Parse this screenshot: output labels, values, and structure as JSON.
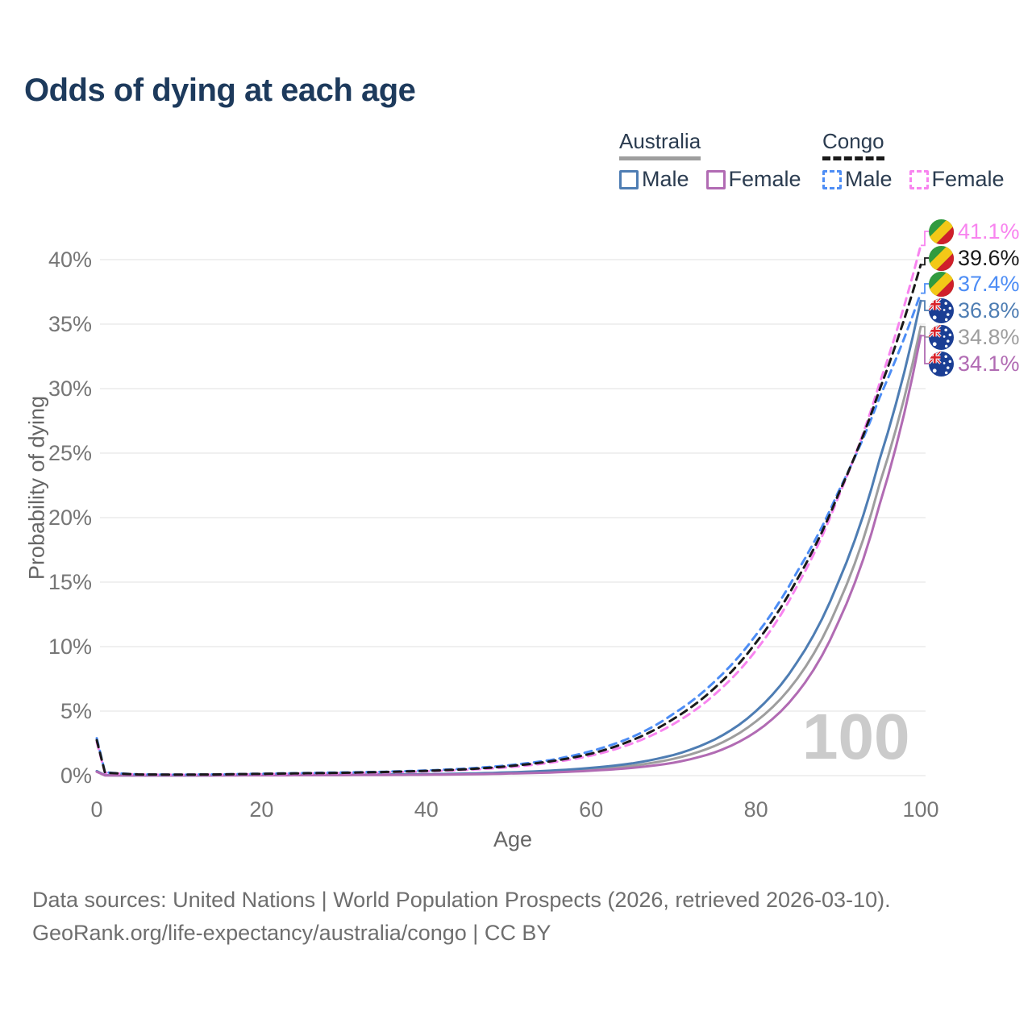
{
  "title": "Odds of dying at each age",
  "legend": {
    "groups": [
      {
        "label": "Australia",
        "underline_style": "solid",
        "underline_color": "#9e9e9e",
        "items": [
          {
            "label": "Male",
            "swatch_style": "solid",
            "color": "#4e7db3"
          },
          {
            "label": "Female",
            "swatch_style": "solid",
            "color": "#b16bb3"
          }
        ]
      },
      {
        "label": "Congo",
        "underline_style": "dashed",
        "underline_color": "#1a1a1a",
        "items": [
          {
            "label": "Male",
            "swatch_style": "dashed",
            "color": "#4d8df5"
          },
          {
            "label": "Female",
            "swatch_style": "dashed",
            "color": "#f884ef"
          }
        ]
      }
    ]
  },
  "chart_data": {
    "type": "line",
    "title": "Odds of dying at each age",
    "xlabel": "Age",
    "ylabel": "Probability of dying",
    "xlim": [
      0,
      100
    ],
    "ylim_percent": [
      0,
      43
    ],
    "x_ticks": [
      0,
      20,
      40,
      60,
      80,
      100
    ],
    "y_ticks_percent": [
      0,
      5,
      10,
      15,
      20,
      25,
      30,
      35,
      40
    ],
    "grid": "horizontal",
    "age_watermark": "100",
    "x": [
      0,
      1,
      5,
      10,
      15,
      20,
      25,
      30,
      35,
      40,
      45,
      50,
      55,
      60,
      65,
      70,
      75,
      80,
      85,
      90,
      95,
      100
    ],
    "series": [
      {
        "name": "Congo Female",
        "country": "Congo",
        "sex": "Female",
        "line_style": "dashed",
        "color": "#f884ef",
        "end_value_label": "41.1%",
        "values_percent": [
          2.6,
          0.22,
          0.09,
          0.07,
          0.09,
          0.12,
          0.16,
          0.2,
          0.25,
          0.33,
          0.45,
          0.65,
          1.0,
          1.55,
          2.5,
          4.0,
          6.3,
          9.7,
          14.7,
          21.6,
          30.4,
          41.1
        ]
      },
      {
        "name": "Congo",
        "country": "Congo",
        "sex": "Both",
        "line_style": "dashed",
        "color": "#1a1a1a",
        "end_value_label": "39.6%",
        "values_percent": [
          2.75,
          0.24,
          0.095,
          0.075,
          0.095,
          0.14,
          0.18,
          0.22,
          0.28,
          0.37,
          0.5,
          0.73,
          1.1,
          1.7,
          2.75,
          4.4,
          6.8,
          10.3,
          15.2,
          21.8,
          29.9,
          39.6
        ]
      },
      {
        "name": "Congo Male",
        "country": "Congo",
        "sex": "Male",
        "line_style": "dashed",
        "color": "#4d8df5",
        "end_value_label": "37.4%",
        "values_percent": [
          2.9,
          0.26,
          0.1,
          0.08,
          0.1,
          0.15,
          0.2,
          0.25,
          0.3,
          0.4,
          0.55,
          0.8,
          1.2,
          1.9,
          3.0,
          4.8,
          7.3,
          10.9,
          15.8,
          22.0,
          29.3,
          37.4
        ]
      },
      {
        "name": "Australia Male",
        "country": "Australia",
        "sex": "Male",
        "line_style": "solid",
        "color": "#4e7db3",
        "end_value_label": "36.8%",
        "values_percent": [
          0.35,
          0.03,
          0.01,
          0.01,
          0.03,
          0.05,
          0.06,
          0.07,
          0.09,
          0.11,
          0.16,
          0.25,
          0.38,
          0.6,
          0.95,
          1.6,
          2.8,
          5.0,
          8.8,
          15.0,
          24.5,
          36.8
        ]
      },
      {
        "name": "Australia",
        "country": "Australia",
        "sex": "Both",
        "line_style": "solid",
        "color": "#9e9e9e",
        "end_value_label": "34.8%",
        "values_percent": [
          0.33,
          0.025,
          0.01,
          0.01,
          0.025,
          0.035,
          0.045,
          0.055,
          0.07,
          0.09,
          0.13,
          0.2,
          0.3,
          0.48,
          0.76,
          1.3,
          2.3,
          4.2,
          7.5,
          13.3,
          22.6,
          34.8
        ]
      },
      {
        "name": "Australia Female",
        "country": "Australia",
        "sex": "Female",
        "line_style": "solid",
        "color": "#b16bb3",
        "end_value_label": "34.1%",
        "values_percent": [
          0.3,
          0.02,
          0.01,
          0.01,
          0.02,
          0.025,
          0.03,
          0.04,
          0.05,
          0.07,
          0.1,
          0.16,
          0.24,
          0.38,
          0.6,
          1.0,
          1.8,
          3.4,
          6.4,
          11.9,
          21.0,
          34.1
        ]
      }
    ]
  },
  "flags": {
    "congo": {
      "green": "#319a3e",
      "yellow": "#f3c817",
      "red": "#d01f2b"
    },
    "australia": {
      "blue": "#1b3e94",
      "red": "#d8222a",
      "white": "#ffffff"
    }
  },
  "footer": {
    "line1": "Data sources: United Nations | World Population Prospects (2026, retrieved 2026-03-10).",
    "line2": "GeoRank.org/life-expectancy/australia/congo | CC BY"
  }
}
